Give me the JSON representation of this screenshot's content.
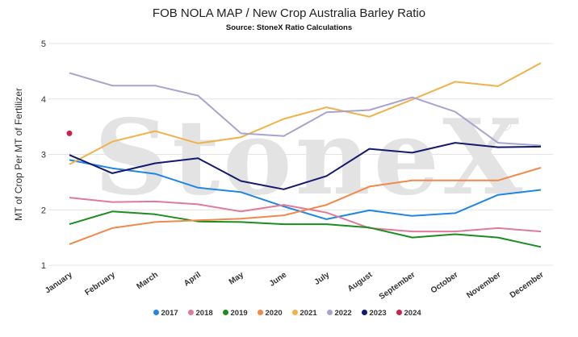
{
  "chart_data": {
    "type": "line",
    "title": "FOB NOLA MAP / New Crop Australia Barley Ratio",
    "subtitle": "Source: StoneX Ratio Calculations",
    "ylabel": "MT of Crop Per MT of Fertilizer",
    "xlabel": "",
    "watermark": "StoneX",
    "watermark_mark": "®",
    "ylim": [
      1,
      5
    ],
    "yticks": [
      "1",
      "2",
      "3",
      "4",
      "5"
    ],
    "grid": true,
    "legend_position": "bottom",
    "categories": [
      "January",
      "February",
      "March",
      "April",
      "May",
      "June",
      "July",
      "August",
      "September",
      "October",
      "November",
      "December"
    ],
    "series": [
      {
        "name": "2017",
        "color": "#1f86e6",
        "values": [
          2.9,
          2.75,
          2.65,
          2.4,
          2.32,
          2.06,
          1.83,
          1.99,
          1.89,
          1.94,
          2.27,
          2.36
        ]
      },
      {
        "name": "2018",
        "color": "#e07a9a",
        "values": [
          2.22,
          2.14,
          2.15,
          2.1,
          1.97,
          2.09,
          1.95,
          1.67,
          1.61,
          1.61,
          1.67,
          1.61
        ]
      },
      {
        "name": "2019",
        "color": "#1a8f1f",
        "values": [
          1.74,
          1.97,
          1.92,
          1.79,
          1.78,
          1.74,
          1.74,
          1.68,
          1.5,
          1.56,
          1.5,
          1.33
        ]
      },
      {
        "name": "2020",
        "color": "#f08a4b",
        "values": [
          1.38,
          1.67,
          1.78,
          1.81,
          1.84,
          1.9,
          2.09,
          2.42,
          2.53,
          2.53,
          2.53,
          2.76
        ]
      },
      {
        "name": "2021",
        "color": "#f0b24a",
        "values": [
          2.82,
          3.23,
          3.42,
          3.2,
          3.31,
          3.64,
          3.85,
          3.68,
          3.99,
          4.31,
          4.23,
          4.65
        ]
      },
      {
        "name": "2022",
        "color": "#a8a3cf",
        "values": [
          4.47,
          4.24,
          4.24,
          4.06,
          3.38,
          3.33,
          3.76,
          3.8,
          4.03,
          3.77,
          3.21,
          3.16
        ]
      },
      {
        "name": "2023",
        "color": "#141a6e",
        "values": [
          2.99,
          2.66,
          2.84,
          2.93,
          2.52,
          2.37,
          2.61,
          3.1,
          3.03,
          3.21,
          3.13,
          3.14
        ]
      },
      {
        "name": "2024",
        "color": "#c8224f",
        "values": [
          3.38,
          null,
          null,
          null,
          null,
          null,
          null,
          null,
          null,
          null,
          null,
          null
        ]
      }
    ]
  }
}
